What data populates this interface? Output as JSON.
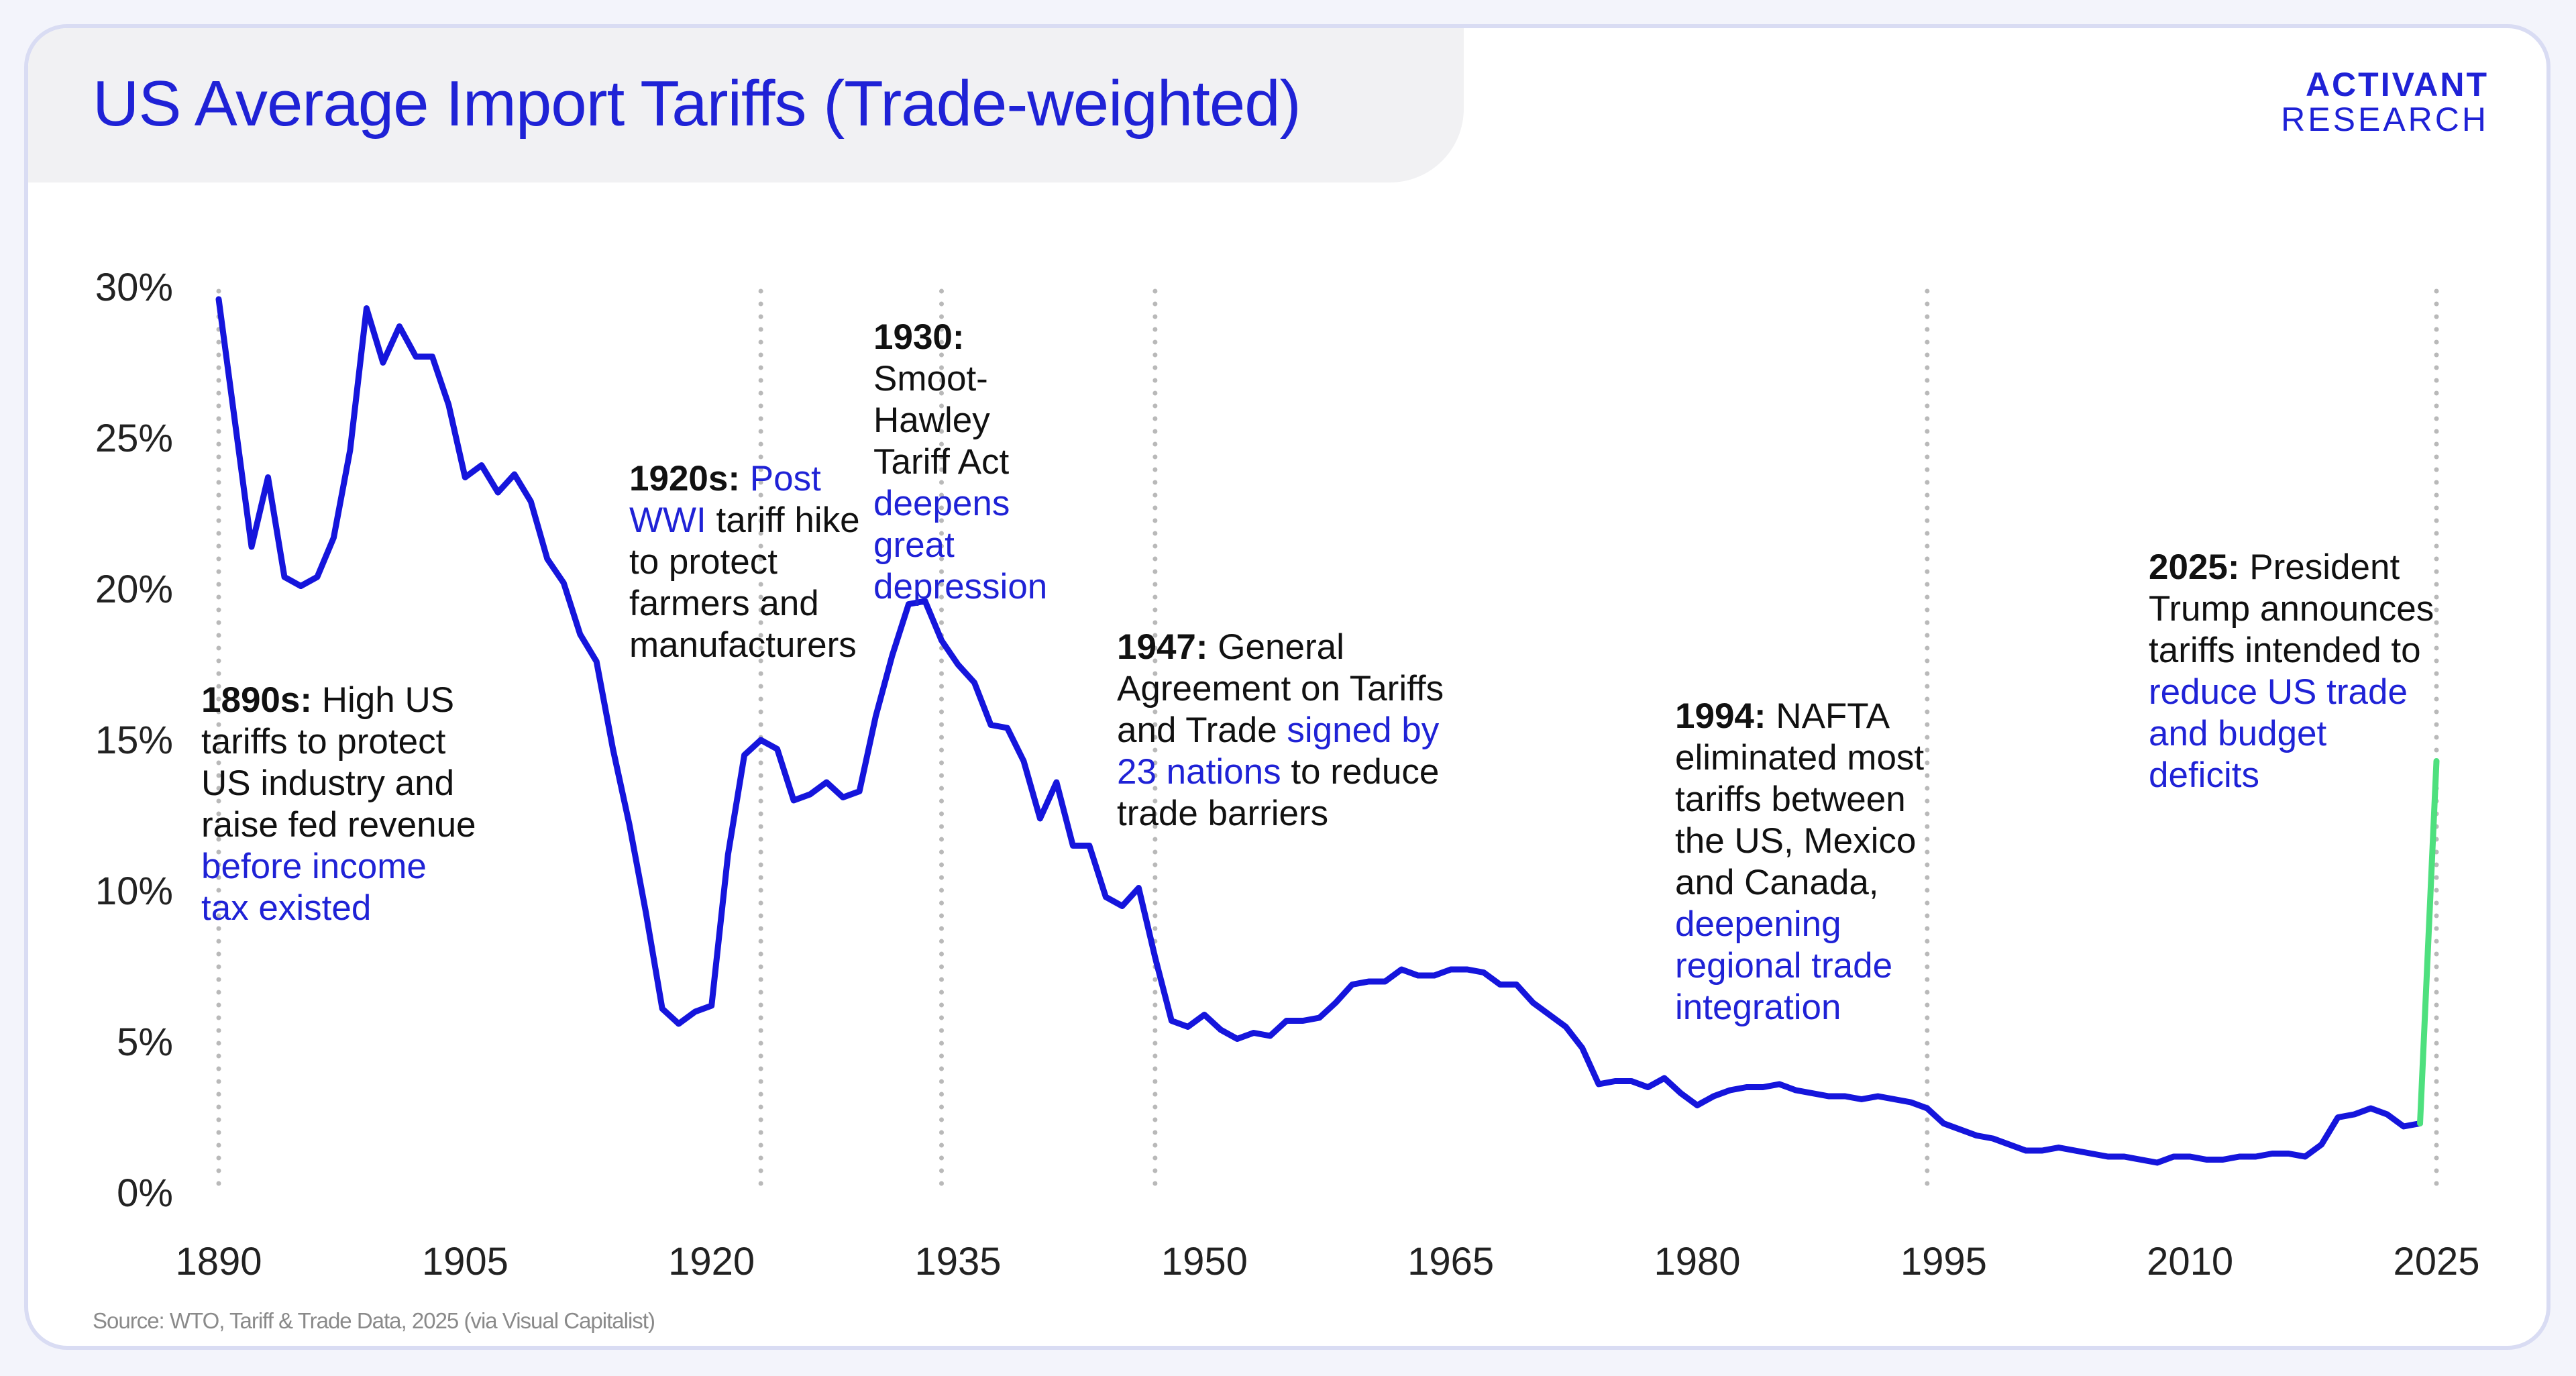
{
  "header": {
    "title": "US Average Import Tariffs (Trade-weighted)",
    "logo_line1": "ACTIVANT",
    "logo_line2": "RESEARCH"
  },
  "footer": {
    "source": "Source: WTO, Tariff & Trade Data, 2025 (via Visual Capitalist)"
  },
  "colors": {
    "accent_blue": "#1f22d6",
    "line_blue": "#1515dc",
    "projection_green": "#4ee07e",
    "grid_gray": "#b9b9b9"
  },
  "annotations": [
    {
      "year_bold": "1890s:",
      "text": " High US tariffs to protect US industry and raise fed revenue ",
      "blue": "before income tax existed",
      "rest": ""
    },
    {
      "year_bold": "1920s:",
      "text": " ",
      "blue": "Post WWI",
      "rest": " tariff hike to protect farmers and manufacturers"
    },
    {
      "year_bold": "1930:",
      "text": " Smoot-Hawley Tariff Act ",
      "blue": "deepens great depression",
      "rest": ""
    },
    {
      "year_bold": "1947:",
      "text": " General Agreement on Tariffs and Trade ",
      "blue": "signed by 23 nations",
      "rest": " to reduce trade barriers"
    },
    {
      "year_bold": "1994:",
      "text": " NAFTA eliminated most tariffs between the US, Mexico and Canada, ",
      "blue": "deepening regional trade integration",
      "rest": ""
    },
    {
      "year_bold": "2025:",
      "text": " President Trump announces tariffs intended to ",
      "blue": "reduce US trade and budget deficits",
      "rest": ""
    }
  ],
  "chart_data": {
    "type": "line",
    "title": "US Average Import Tariffs (Trade-weighted)",
    "xlabel": "",
    "ylabel": "",
    "xlim": [
      1890,
      2025
    ],
    "ylim": [
      0,
      30
    ],
    "x_ticks": [
      1890,
      1905,
      1920,
      1935,
      1950,
      1965,
      1980,
      1995,
      2010,
      2025
    ],
    "x_tick_labels": [
      "1890",
      "1905",
      "1920",
      "1935",
      "1950",
      "1965",
      "1980",
      "1995",
      "2010",
      "2025"
    ],
    "y_ticks": [
      0,
      5,
      10,
      15,
      20,
      25,
      30
    ],
    "y_tick_labels": [
      "0%",
      "5%",
      "10%",
      "15%",
      "20%",
      "25%",
      "30%"
    ],
    "event_lines": [
      1890,
      1923,
      1934,
      1947,
      1994,
      2025
    ],
    "series": [
      {
        "name": "Trade-weighted average tariff (%)",
        "x": [
          1890,
          1891,
          1892,
          1893,
          1894,
          1895,
          1896,
          1897,
          1898,
          1899,
          1900,
          1901,
          1902,
          1903,
          1904,
          1905,
          1906,
          1907,
          1908,
          1909,
          1910,
          1911,
          1912,
          1913,
          1914,
          1915,
          1916,
          1917,
          1918,
          1919,
          1920,
          1921,
          1922,
          1923,
          1924,
          1925,
          1926,
          1927,
          1928,
          1929,
          1930,
          1931,
          1932,
          1933,
          1934,
          1935,
          1936,
          1937,
          1938,
          1939,
          1940,
          1941,
          1942,
          1943,
          1944,
          1945,
          1946,
          1947,
          1948,
          1949,
          1950,
          1951,
          1952,
          1953,
          1954,
          1955,
          1956,
          1957,
          1958,
          1959,
          1960,
          1961,
          1962,
          1963,
          1964,
          1965,
          1966,
          1967,
          1968,
          1969,
          1970,
          1971,
          1972,
          1973,
          1974,
          1975,
          1976,
          1977,
          1978,
          1979,
          1980,
          1981,
          1982,
          1983,
          1984,
          1985,
          1986,
          1987,
          1988,
          1989,
          1990,
          1991,
          1992,
          1993,
          1994,
          1995,
          1996,
          1997,
          1998,
          1999,
          2000,
          2001,
          2002,
          2003,
          2004,
          2005,
          2006,
          2007,
          2008,
          2009,
          2010,
          2011,
          2012,
          2013,
          2014,
          2015,
          2016,
          2017,
          2018,
          2019,
          2020,
          2021,
          2022,
          2023,
          2024
        ],
        "values": [
          29.6,
          25.5,
          21.4,
          23.7,
          20.4,
          20.1,
          20.4,
          21.7,
          24.6,
          29.3,
          27.5,
          28.7,
          27.7,
          27.7,
          26.1,
          23.7,
          24.1,
          23.2,
          23.8,
          22.9,
          21.0,
          20.2,
          18.5,
          17.6,
          14.7,
          12.2,
          9.3,
          6.1,
          5.6,
          6.0,
          6.2,
          11.2,
          14.5,
          15.0,
          14.7,
          13.0,
          13.2,
          13.6,
          13.1,
          13.3,
          15.8,
          17.8,
          19.5,
          19.6,
          18.3,
          17.5,
          16.9,
          15.5,
          15.4,
          14.3,
          12.4,
          13.6,
          11.5,
          11.5,
          9.8,
          9.5,
          10.1,
          7.8,
          5.7,
          5.5,
          5.9,
          5.4,
          5.1,
          5.3,
          5.2,
          5.7,
          5.7,
          5.8,
          6.3,
          6.9,
          7.0,
          7.0,
          7.4,
          7.2,
          7.2,
          7.4,
          7.4,
          7.3,
          6.9,
          6.9,
          6.3,
          5.9,
          5.5,
          4.8,
          3.6,
          3.7,
          3.7,
          3.5,
          3.8,
          3.3,
          2.9,
          3.2,
          3.4,
          3.5,
          3.5,
          3.6,
          3.4,
          3.3,
          3.2,
          3.2,
          3.1,
          3.2,
          3.1,
          3.0,
          2.8,
          2.3,
          2.1,
          1.9,
          1.8,
          1.6,
          1.4,
          1.4,
          1.5,
          1.4,
          1.3,
          1.2,
          1.2,
          1.1,
          1.0,
          1.2,
          1.2,
          1.1,
          1.1,
          1.2,
          1.2,
          1.3,
          1.3,
          1.2,
          1.6,
          2.5,
          2.6,
          2.8,
          2.6,
          2.2,
          2.3
        ]
      },
      {
        "name": "2025 announced",
        "x": [
          2024,
          2025
        ],
        "values": [
          2.3,
          14.3
        ]
      }
    ]
  }
}
